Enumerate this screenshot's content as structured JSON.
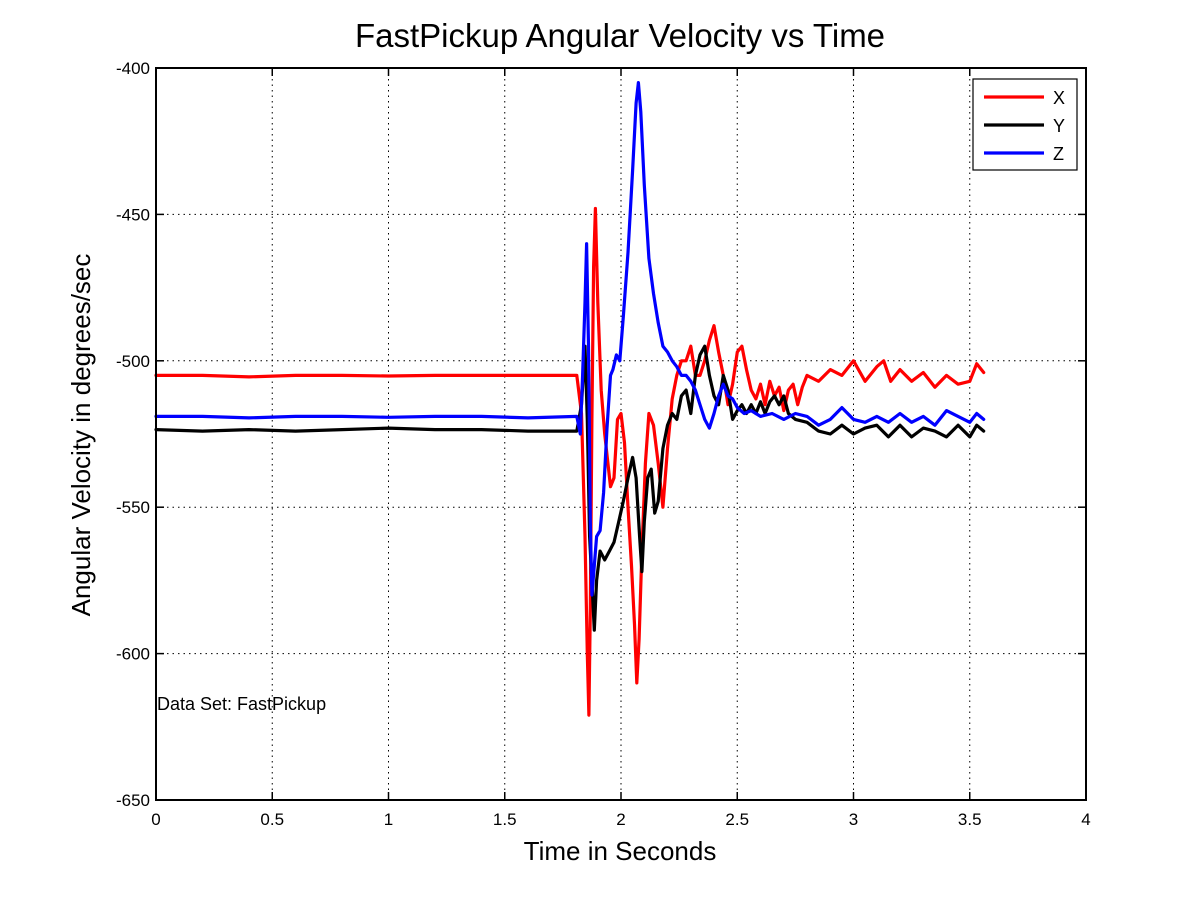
{
  "chart_data": {
    "type": "line",
    "title": "FastPickup Angular Velocity vs Time",
    "xlabel": "Time in Seconds",
    "ylabel": "Angular Velocity in degrees/sec",
    "xlim": [
      0,
      4
    ],
    "ylim": [
      -650,
      -400
    ],
    "xticks": [
      0,
      0.5,
      1,
      1.5,
      2,
      2.5,
      3,
      3.5,
      4
    ],
    "xtick_labels": [
      "0",
      "0.5",
      "1",
      "1.5",
      "2",
      "2.5",
      "3",
      "3.5",
      "4"
    ],
    "yticks": [
      -650,
      -600,
      -550,
      -500,
      -450,
      -400
    ],
    "ytick_labels": [
      "-650",
      "-600",
      "-550",
      "-500",
      "-450",
      "-400"
    ],
    "grid": true,
    "legend_position": "top-right",
    "annotation": "Data Set: FastPickup",
    "series": [
      {
        "name": "X",
        "color": "#ff0000",
        "points": [
          [
            0,
            -505
          ],
          [
            0.2,
            -505
          ],
          [
            0.4,
            -505.5
          ],
          [
            0.6,
            -505
          ],
          [
            0.8,
            -505
          ],
          [
            1.0,
            -505.2
          ],
          [
            1.2,
            -505
          ],
          [
            1.4,
            -505
          ],
          [
            1.6,
            -505
          ],
          [
            1.81,
            -505
          ],
          [
            1.83,
            -518
          ],
          [
            1.845,
            -560
          ],
          [
            1.855,
            -600
          ],
          [
            1.862,
            -621
          ],
          [
            1.868,
            -585
          ],
          [
            1.875,
            -520
          ],
          [
            1.882,
            -468
          ],
          [
            1.89,
            -448
          ],
          [
            1.9,
            -480
          ],
          [
            1.915,
            -510
          ],
          [
            1.93,
            -525
          ],
          [
            1.955,
            -543
          ],
          [
            1.97,
            -540
          ],
          [
            1.985,
            -520
          ],
          [
            2.0,
            -518
          ],
          [
            2.015,
            -528
          ],
          [
            2.03,
            -550
          ],
          [
            2.045,
            -570
          ],
          [
            2.058,
            -590
          ],
          [
            2.068,
            -610
          ],
          [
            2.078,
            -595
          ],
          [
            2.09,
            -565
          ],
          [
            2.105,
            -535
          ],
          [
            2.12,
            -518
          ],
          [
            2.14,
            -522
          ],
          [
            2.16,
            -535
          ],
          [
            2.18,
            -550
          ],
          [
            2.2,
            -530
          ],
          [
            2.22,
            -513
          ],
          [
            2.24,
            -505
          ],
          [
            2.26,
            -500
          ],
          [
            2.28,
            -500
          ],
          [
            2.3,
            -495
          ],
          [
            2.32,
            -505
          ],
          [
            2.34,
            -505
          ],
          [
            2.36,
            -500
          ],
          [
            2.38,
            -493
          ],
          [
            2.4,
            -488
          ],
          [
            2.42,
            -497
          ],
          [
            2.44,
            -505
          ],
          [
            2.46,
            -515
          ],
          [
            2.48,
            -508
          ],
          [
            2.5,
            -497
          ],
          [
            2.52,
            -495
          ],
          [
            2.54,
            -503
          ],
          [
            2.56,
            -510
          ],
          [
            2.58,
            -513
          ],
          [
            2.6,
            -508
          ],
          [
            2.62,
            -515
          ],
          [
            2.64,
            -507
          ],
          [
            2.66,
            -512
          ],
          [
            2.68,
            -509
          ],
          [
            2.7,
            -517
          ],
          [
            2.72,
            -510
          ],
          [
            2.74,
            -508
          ],
          [
            2.76,
            -515
          ],
          [
            2.78,
            -509
          ],
          [
            2.8,
            -505
          ],
          [
            2.85,
            -507
          ],
          [
            2.9,
            -503
          ],
          [
            2.95,
            -505
          ],
          [
            3.0,
            -500
          ],
          [
            3.05,
            -507
          ],
          [
            3.1,
            -502
          ],
          [
            3.13,
            -500
          ],
          [
            3.16,
            -507
          ],
          [
            3.2,
            -503
          ],
          [
            3.25,
            -507
          ],
          [
            3.3,
            -504
          ],
          [
            3.35,
            -509
          ],
          [
            3.4,
            -505
          ],
          [
            3.45,
            -508
          ],
          [
            3.5,
            -507
          ],
          [
            3.53,
            -501
          ],
          [
            3.56,
            -504
          ]
        ]
      },
      {
        "name": "Y",
        "color": "#000000",
        "points": [
          [
            0,
            -523.5
          ],
          [
            0.2,
            -524
          ],
          [
            0.4,
            -523.5
          ],
          [
            0.6,
            -524
          ],
          [
            0.8,
            -523.5
          ],
          [
            1.0,
            -523
          ],
          [
            1.2,
            -523.5
          ],
          [
            1.4,
            -523.5
          ],
          [
            1.6,
            -524
          ],
          [
            1.81,
            -524
          ],
          [
            1.83,
            -515
          ],
          [
            1.845,
            -495
          ],
          [
            1.855,
            -520
          ],
          [
            1.865,
            -560
          ],
          [
            1.878,
            -580
          ],
          [
            1.885,
            -592
          ],
          [
            1.895,
            -575
          ],
          [
            1.91,
            -565
          ],
          [
            1.93,
            -568
          ],
          [
            1.95,
            -565
          ],
          [
            1.97,
            -562
          ],
          [
            1.99,
            -555
          ],
          [
            2.01,
            -548
          ],
          [
            2.03,
            -540
          ],
          [
            2.05,
            -533
          ],
          [
            2.065,
            -540
          ],
          [
            2.08,
            -560
          ],
          [
            2.09,
            -572
          ],
          [
            2.1,
            -555
          ],
          [
            2.115,
            -540
          ],
          [
            2.13,
            -537
          ],
          [
            2.145,
            -552
          ],
          [
            2.16,
            -548
          ],
          [
            2.18,
            -530
          ],
          [
            2.2,
            -522
          ],
          [
            2.22,
            -518
          ],
          [
            2.24,
            -520
          ],
          [
            2.26,
            -512
          ],
          [
            2.28,
            -510
          ],
          [
            2.3,
            -518
          ],
          [
            2.32,
            -505
          ],
          [
            2.34,
            -498
          ],
          [
            2.36,
            -495
          ],
          [
            2.38,
            -505
          ],
          [
            2.4,
            -512
          ],
          [
            2.42,
            -515
          ],
          [
            2.44,
            -505
          ],
          [
            2.46,
            -510
          ],
          [
            2.48,
            -520
          ],
          [
            2.5,
            -517
          ],
          [
            2.52,
            -515
          ],
          [
            2.54,
            -518
          ],
          [
            2.56,
            -515
          ],
          [
            2.58,
            -518
          ],
          [
            2.6,
            -514
          ],
          [
            2.62,
            -518
          ],
          [
            2.64,
            -514
          ],
          [
            2.66,
            -512
          ],
          [
            2.68,
            -515
          ],
          [
            2.7,
            -512
          ],
          [
            2.72,
            -518
          ],
          [
            2.75,
            -520
          ],
          [
            2.8,
            -521
          ],
          [
            2.85,
            -524
          ],
          [
            2.9,
            -525
          ],
          [
            2.95,
            -522
          ],
          [
            3.0,
            -525
          ],
          [
            3.05,
            -523
          ],
          [
            3.1,
            -522
          ],
          [
            3.15,
            -526
          ],
          [
            3.2,
            -522
          ],
          [
            3.25,
            -526
          ],
          [
            3.3,
            -523
          ],
          [
            3.35,
            -524
          ],
          [
            3.4,
            -526
          ],
          [
            3.45,
            -522
          ],
          [
            3.5,
            -526
          ],
          [
            3.53,
            -522
          ],
          [
            3.56,
            -524
          ]
        ]
      },
      {
        "name": "Z",
        "color": "#0000ff",
        "points": [
          [
            0,
            -519
          ],
          [
            0.2,
            -519
          ],
          [
            0.4,
            -519.5
          ],
          [
            0.6,
            -519
          ],
          [
            0.8,
            -519
          ],
          [
            1.0,
            -519.3
          ],
          [
            1.2,
            -519
          ],
          [
            1.4,
            -519
          ],
          [
            1.6,
            -519.5
          ],
          [
            1.81,
            -519
          ],
          [
            1.825,
            -525
          ],
          [
            1.835,
            -505
          ],
          [
            1.845,
            -480
          ],
          [
            1.852,
            -460
          ],
          [
            1.86,
            -495
          ],
          [
            1.868,
            -555
          ],
          [
            1.875,
            -580
          ],
          [
            1.885,
            -570
          ],
          [
            1.895,
            -560
          ],
          [
            1.91,
            -558
          ],
          [
            1.925,
            -545
          ],
          [
            1.94,
            -523
          ],
          [
            1.955,
            -505
          ],
          [
            1.965,
            -503
          ],
          [
            1.98,
            -498
          ],
          [
            1.995,
            -500
          ],
          [
            2.01,
            -485
          ],
          [
            2.03,
            -463
          ],
          [
            2.05,
            -435
          ],
          [
            2.065,
            -412
          ],
          [
            2.075,
            -405
          ],
          [
            2.085,
            -415
          ],
          [
            2.1,
            -440
          ],
          [
            2.12,
            -465
          ],
          [
            2.14,
            -477
          ],
          [
            2.16,
            -487
          ],
          [
            2.18,
            -495
          ],
          [
            2.2,
            -497
          ],
          [
            2.22,
            -500
          ],
          [
            2.24,
            -502
          ],
          [
            2.26,
            -505
          ],
          [
            2.28,
            -505
          ],
          [
            2.3,
            -507
          ],
          [
            2.32,
            -510
          ],
          [
            2.34,
            -515
          ],
          [
            2.36,
            -520
          ],
          [
            2.38,
            -523
          ],
          [
            2.4,
            -518
          ],
          [
            2.42,
            -512
          ],
          [
            2.44,
            -508
          ],
          [
            2.46,
            -512
          ],
          [
            2.48,
            -513
          ],
          [
            2.5,
            -516
          ],
          [
            2.53,
            -518
          ],
          [
            2.56,
            -517
          ],
          [
            2.6,
            -519
          ],
          [
            2.65,
            -518
          ],
          [
            2.7,
            -520
          ],
          [
            2.75,
            -518
          ],
          [
            2.8,
            -519
          ],
          [
            2.85,
            -522
          ],
          [
            2.9,
            -520
          ],
          [
            2.95,
            -516
          ],
          [
            3.0,
            -520
          ],
          [
            3.05,
            -521
          ],
          [
            3.1,
            -519
          ],
          [
            3.15,
            -521
          ],
          [
            3.2,
            -518
          ],
          [
            3.25,
            -521
          ],
          [
            3.3,
            -519
          ],
          [
            3.35,
            -522
          ],
          [
            3.4,
            -517
          ],
          [
            3.45,
            -519
          ],
          [
            3.5,
            -521
          ],
          [
            3.53,
            -518
          ],
          [
            3.56,
            -520
          ]
        ]
      }
    ]
  }
}
